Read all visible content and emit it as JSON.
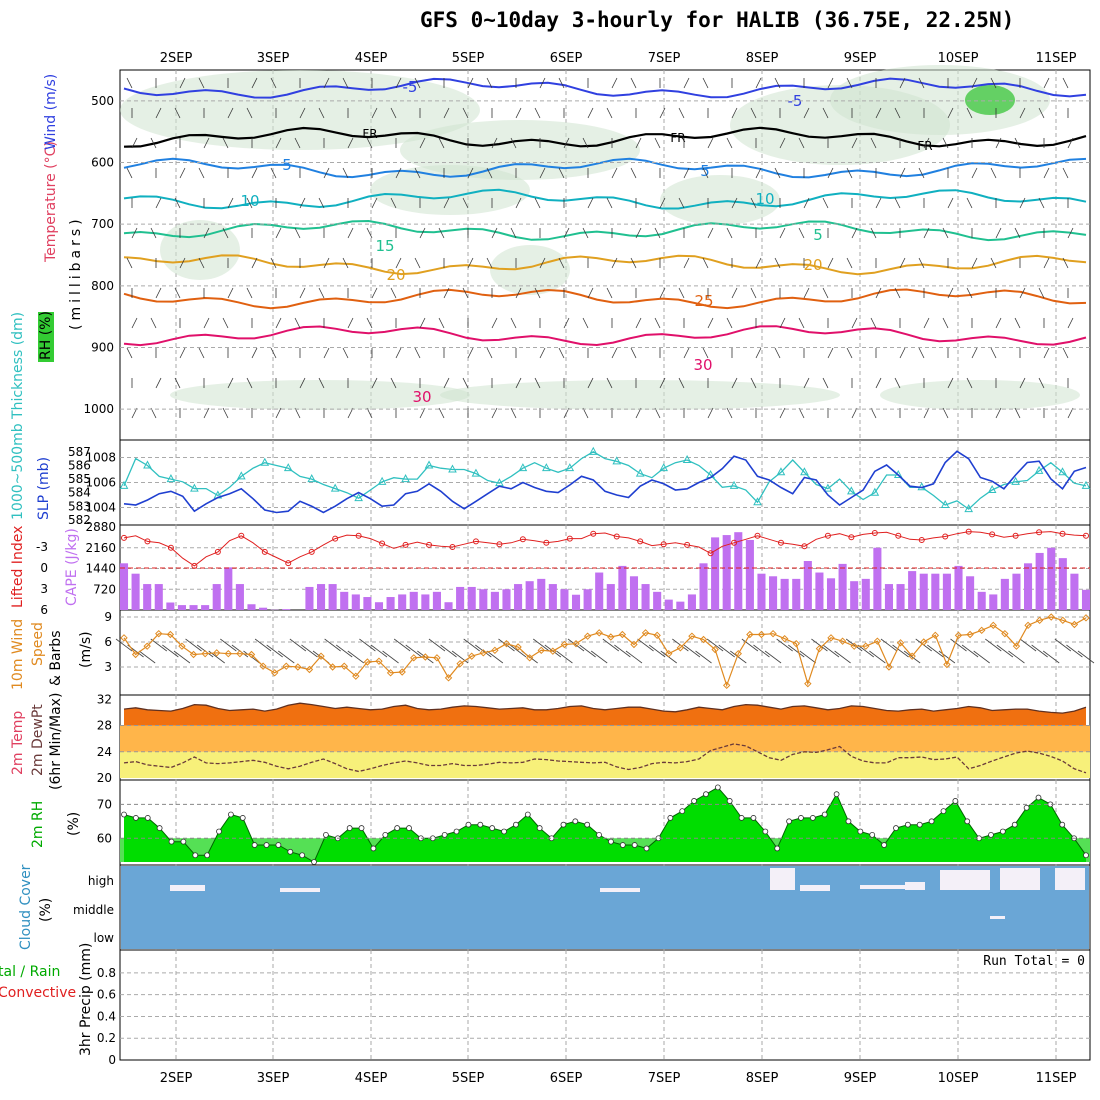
{
  "title": "GFS 0~10day 3-hourly for HALIB (36.75E, 22.25N)",
  "dates": [
    "2SEP",
    "3SEP",
    "4SEP",
    "5SEP",
    "6SEP",
    "7SEP",
    "8SEP",
    "9SEP",
    "10SEP",
    "11SEP"
  ],
  "panel_labels": {
    "upper": {
      "rh": "RH (%)",
      "temp": "Temperature (°C)",
      "wind": "Wind (m/s)",
      "mb": "(millibars)"
    },
    "thick": {
      "thick": "1000~500mb Thickness (dm)",
      "slp": "SLP (mb)"
    },
    "li": {
      "li": "Lifted Index",
      "cape": "CAPE (J/kg)"
    },
    "wind10": {
      "a": "10m Wind",
      "b": "Speed",
      "c": "& Barbs",
      "unit": "(m/s)"
    },
    "temp2m": {
      "a": "2m Temp",
      "b": "2m DewPt",
      "c": "(6hr Min/Max)"
    },
    "rh2m": {
      "a": "2m RH",
      "unit": "(%)"
    },
    "cloud": {
      "a": "Cloud Cover",
      "unit": "(%)"
    },
    "precip": {
      "a": "tal / Rain",
      "b": "Convective",
      "c": "3hr Precip (mm)"
    }
  },
  "run_total": "Run Total = 0",
  "colors": {
    "cape": "#c070f0",
    "li": "#e02020",
    "slp": "#1f3fd0",
    "thick": "#30c0c0",
    "wind10": "#e08a20",
    "temp_band": "#f07010",
    "rh_green": "#00dd00",
    "cloud": "#6aa6d6"
  },
  "chart_data": [
    {
      "type": "heatmap",
      "title": "Upper air cross-section",
      "ylabel": "millibars",
      "y_ticks": [
        500,
        600,
        700,
        800,
        900,
        1000
      ],
      "ylim": [
        450,
        1050
      ],
      "x_ticks": [
        "2SEP",
        "3SEP",
        "4SEP",
        "5SEP",
        "6SEP",
        "7SEP",
        "8SEP",
        "9SEP",
        "10SEP",
        "11SEP"
      ],
      "isotherm_labels": [
        "-5",
        "-5",
        "FR",
        "FR",
        "FR",
        "5",
        "5",
        "10",
        "10",
        "15",
        "5",
        "20",
        "20",
        "25",
        "30",
        "30"
      ],
      "isotherms": [
        {
          "label": "-5",
          "level_mb": 480,
          "color": "#3040e0"
        },
        {
          "label": "FR",
          "level_mb": 560,
          "color": "#000000"
        },
        {
          "label": "5",
          "level_mb": 610,
          "color": "#2080e0"
        },
        {
          "label": "10",
          "level_mb": 660,
          "color": "#10b0c0"
        },
        {
          "label": "15",
          "level_mb": 710,
          "color": "#20c090"
        },
        {
          "label": "20",
          "level_mb": 765,
          "color": "#e0a020"
        },
        {
          "label": "25",
          "level_mb": 820,
          "color": "#e06010"
        },
        {
          "label": "30",
          "level_mb": 880,
          "color": "#e0106a"
        }
      ]
    },
    {
      "type": "line",
      "title": "1000~500mb Thickness and SLP",
      "thick_ticks": [
        "587",
        "586",
        "585",
        "584",
        "583",
        "582"
      ],
      "slp_ticks": [
        "1008",
        "1006",
        "1004"
      ],
      "series": [
        {
          "name": "Thickness (dm)",
          "color": "#30c0c0",
          "values": [
            584.5,
            586.5,
            586,
            585.2,
            585,
            584.8,
            584.3,
            584.3,
            583.8,
            584.4,
            585.2,
            585.8,
            586.2,
            586,
            585.8,
            585.2,
            585,
            584.6,
            584.3,
            584,
            583.6,
            584.2,
            584.8,
            585.1,
            585,
            585,
            586,
            585.8,
            585.7,
            585.7,
            585.4,
            584.9,
            584.7,
            585.2,
            585.8,
            586.2,
            585.8,
            585.5,
            585.8,
            586.5,
            587,
            586.5,
            586.3,
            586,
            585.4,
            585.1,
            585.8,
            586.2,
            586.4,
            586,
            585.3,
            584.4,
            584.5,
            584.2,
            583.3,
            584.8,
            585.5,
            586.4,
            585.5,
            584.6,
            584.3,
            585,
            584.1,
            583.5,
            584,
            585.3,
            585.3,
            584.4,
            584.4,
            583.8,
            583.1,
            583.4,
            582.8,
            583.6,
            584.2,
            584.6,
            584.8,
            584.9,
            585.6,
            586.2,
            585.5,
            584.7,
            584.5
          ]
        },
        {
          "name": "SLP (mb)",
          "color": "#1f3fd0",
          "values": [
            1004.3,
            1004.2,
            1004.6,
            1005.1,
            1005.3,
            1004.9,
            1003.7,
            1004.3,
            1004.8,
            1005.1,
            1005.5,
            1004.7,
            1003.8,
            1003.6,
            1003.7,
            1004.5,
            1004.1,
            1003.6,
            1004.1,
            1004.7,
            1005.2,
            1004.7,
            1004.1,
            1004.2,
            1005.1,
            1005.3,
            1005.9,
            1005.3,
            1004.5,
            1003.9,
            1004.5,
            1005.1,
            1005.7,
            1005.5,
            1006.0,
            1005.6,
            1005.3,
            1005.2,
            1005.8,
            1006.5,
            1006.2,
            1005.3,
            1005.0,
            1004.8,
            1005.7,
            1006.2,
            1005.9,
            1005.4,
            1005.5,
            1006.0,
            1006.4,
            1007.1,
            1008.1,
            1007.8,
            1006.5,
            1006.2,
            1005.6,
            1005.1,
            1006.4,
            1006.2,
            1005.0,
            1004.2,
            1004.8,
            1005.4,
            1006.9,
            1007.4,
            1006.6,
            1005.7,
            1005.6,
            1005.9,
            1007.6,
            1008.5,
            1007.9,
            1006.4,
            1006.1,
            1005.5,
            1006.6,
            1007.6,
            1007.7,
            1006.3,
            1005.5,
            1006.9,
            1007.2
          ]
        }
      ]
    },
    {
      "type": "bar",
      "title": "Lifted Index and CAPE",
      "li_ticks": [
        "-3",
        "0",
        "3",
        "6"
      ],
      "cape_ticks": [
        "2880",
        "2160",
        "1440",
        "720"
      ],
      "series": [
        {
          "name": "CAPE (J/kg)",
          "color": "#c070f0",
          "values": [
            1620,
            1260,
            900,
            900,
            260,
            170,
            170,
            170,
            900,
            1480,
            900,
            200,
            80,
            10,
            30,
            0,
            800,
            900,
            900,
            630,
            540,
            450,
            270,
            450,
            540,
            630,
            540,
            630,
            270,
            800,
            800,
            720,
            630,
            720,
            900,
            1000,
            1080,
            900,
            720,
            530,
            720,
            1300,
            900,
            1530,
            1170,
            900,
            630,
            360,
            290,
            540,
            1620,
            2520,
            2600,
            2700,
            2430,
            1260,
            1170,
            1080,
            1080,
            1700,
            1300,
            1100,
            1600,
            1000,
            1080,
            2160,
            900,
            900,
            1350,
            1260,
            1260,
            1260,
            1530,
            1170,
            630,
            540,
            1080,
            1260,
            1620,
            1980,
            2160,
            1800,
            1260,
            700
          ]
        },
        {
          "name": "Lifted Index",
          "color": "#e02020",
          "values": [
            -4.3,
            -4.6,
            -3.8,
            -3.6,
            -2.9,
            -1.4,
            -0.3,
            -1.6,
            -2.3,
            -3.9,
            -4.6,
            -3.6,
            -2.3,
            -1.5,
            -0.7,
            -1.6,
            -2.3,
            -3.3,
            -4.2,
            -4.7,
            -4.6,
            -4.2,
            -3.5,
            -2.8,
            -3.3,
            -3.7,
            -3.3,
            -3.1,
            -3.0,
            -3.4,
            -3.8,
            -3.6,
            -3.4,
            -3.6,
            -4.1,
            -3.9,
            -3.6,
            -3.8,
            -4.2,
            -4.2,
            -4.9,
            -5.0,
            -4.5,
            -4.3,
            -3.8,
            -3.2,
            -3.4,
            -3.6,
            -3.3,
            -3.0,
            -2.1,
            -3.1,
            -3.6,
            -4.1,
            -4.6,
            -4.1,
            -3.6,
            -3.4,
            -3.1,
            -4.1,
            -4.6,
            -4.9,
            -4.4,
            -4.8,
            -5.0,
            -5.1,
            -4.6,
            -4.1,
            -4.0,
            -4.3,
            -4.5,
            -4.9,
            -5.2,
            -5.1,
            -4.8,
            -4.4,
            -4.6,
            -4.9,
            -5.1,
            -5.2,
            -4.9,
            -4.7,
            -4.6
          ]
        }
      ]
    },
    {
      "type": "line",
      "title": "10m Wind Speed",
      "ylabel": "m/s",
      "y_ticks": [
        "3",
        "6",
        "9"
      ],
      "ylim": [
        0,
        9.5
      ],
      "values": [
        6.5,
        4.5,
        5.5,
        7,
        6.9,
        5.5,
        4.5,
        4.6,
        4.7,
        4.6,
        4.6,
        4.5,
        3.1,
        2.3,
        3.1,
        3.0,
        2.7,
        4.3,
        3.0,
        3.1,
        1.9,
        3.6,
        3.7,
        2.3,
        2.4,
        4.1,
        4.2,
        4.1,
        1.7,
        3.4,
        4.3,
        4.7,
        5.0,
        5.8,
        5.4,
        4.1,
        5.0,
        4.9,
        5.7,
        5.8,
        6.7,
        7.1,
        6.6,
        6.9,
        5.7,
        7.1,
        6.8,
        4.6,
        5.3,
        6.7,
        6.3,
        5.1,
        0.8,
        4.6,
        6.9,
        6.9,
        7.0,
        6.4,
        5.8,
        1.0,
        5.2,
        6.5,
        6.1,
        5.5,
        5.5,
        6.1,
        3.0,
        5.9,
        4.3,
        6.0,
        6.8,
        3.3,
        6.8,
        6.9,
        7.4,
        8.0,
        7.0,
        5.5,
        8.0,
        8.6,
        9.0,
        8.6,
        8.1,
        8.9
      ]
    },
    {
      "type": "area",
      "title": "2m Temp and DewPt",
      "y_ticks": [
        "32",
        "28",
        "24",
        "20"
      ],
      "ylim": [
        20,
        32
      ],
      "series": [
        {
          "name": "2m Temp",
          "color": "#f07010",
          "values": [
            30.5,
            30.7,
            30.4,
            30.3,
            30.2,
            30.6,
            31.2,
            31.1,
            30.6,
            30.3,
            30.4,
            30.5,
            30.2,
            30.5,
            31.1,
            31.4,
            31.2,
            30.9,
            30.6,
            30.8,
            30.6,
            30.4,
            30.5,
            30.9,
            31.1,
            30.6,
            30.4,
            30.5,
            30.8,
            31.0,
            30.9,
            30.7,
            30.5,
            30.6,
            30.7,
            30.4,
            30.4,
            30.6,
            30.9,
            31.0,
            30.6,
            30.4,
            30.6,
            30.8,
            30.8,
            30.5,
            30.2,
            30.1,
            30.4,
            30.8,
            30.6,
            30.4,
            30.9,
            31.2,
            31.1,
            30.8,
            30.5,
            30.9,
            31.0,
            30.7,
            30.4,
            30.6,
            31.0,
            30.9,
            30.6,
            30.3,
            30.2,
            30.4,
            30.5,
            30.2,
            30.4,
            30.6,
            30.9,
            30.7,
            30.3,
            30.4,
            30.5,
            30.5,
            30.2,
            30.0,
            29.9,
            30.2,
            30.8
          ]
        },
        {
          "name": "2m DewPt",
          "color": "#6a3a3a",
          "values": [
            22.3,
            22.5,
            22.0,
            21.8,
            21.6,
            22.3,
            23.2,
            22.3,
            22.2,
            22.3,
            22.5,
            22.7,
            22.4,
            21.8,
            21.4,
            21.8,
            22.4,
            22.9,
            22.2,
            21.4,
            21.0,
            21.4,
            21.9,
            22.3,
            22.6,
            22.3,
            21.9,
            21.9,
            22.2,
            21.9,
            21.9,
            22.1,
            22.4,
            22.3,
            22.4,
            22.9,
            22.8,
            22.6,
            22.5,
            22.4,
            22.3,
            22.4,
            21.7,
            21.3,
            21.6,
            22.2,
            22.4,
            22.3,
            22.5,
            22.9,
            24.2,
            24.7,
            25.2,
            24.9,
            24.0,
            23.1,
            22.7,
            23.6,
            24.0,
            23.9,
            24.3,
            24.8,
            23.3,
            22.6,
            22.3,
            22.3,
            23.1,
            23.1,
            23.2,
            22.8,
            22.9,
            23.2,
            21.4,
            21.9,
            22.6,
            23.2,
            23.8,
            24.1,
            23.8,
            23.3,
            22.6,
            21.4,
            20.8
          ]
        }
      ]
    },
    {
      "type": "area",
      "title": "2m RH",
      "ylabel": "%",
      "y_ticks": [
        "70",
        "60"
      ],
      "ylim": [
        53,
        76
      ],
      "values": [
        67,
        66,
        66,
        63,
        59,
        59,
        55,
        55,
        62,
        67,
        66,
        58,
        58,
        58,
        56,
        55,
        53,
        61,
        60,
        63,
        63,
        57,
        61,
        63,
        63,
        60,
        60,
        61,
        62,
        64,
        64,
        63,
        62,
        64,
        67,
        63,
        60,
        64,
        65,
        64,
        61,
        59,
        58,
        58,
        57,
        60,
        66,
        68,
        71,
        73,
        75,
        71,
        66,
        66,
        62,
        57,
        65,
        66,
        66,
        67,
        73,
        65,
        62,
        61,
        58,
        63,
        64,
        64,
        65,
        68,
        71,
        65,
        60,
        61,
        62,
        64,
        69,
        72,
        70,
        64,
        60,
        55
      ]
    },
    {
      "type": "bar",
      "title": "Cloud Cover",
      "ylabel": "%",
      "y_ticks": [
        "high",
        "middle",
        "low"
      ]
    },
    {
      "type": "bar",
      "title": "3hr Precip",
      "ylabel": "mm",
      "y_ticks": [
        "0.8",
        "0.6",
        "0.4",
        "0.2",
        "0"
      ],
      "ylim": [
        0,
        0.9
      ],
      "values": [
        0,
        0,
        0,
        0,
        0,
        0,
        0,
        0,
        0,
        0
      ]
    }
  ]
}
